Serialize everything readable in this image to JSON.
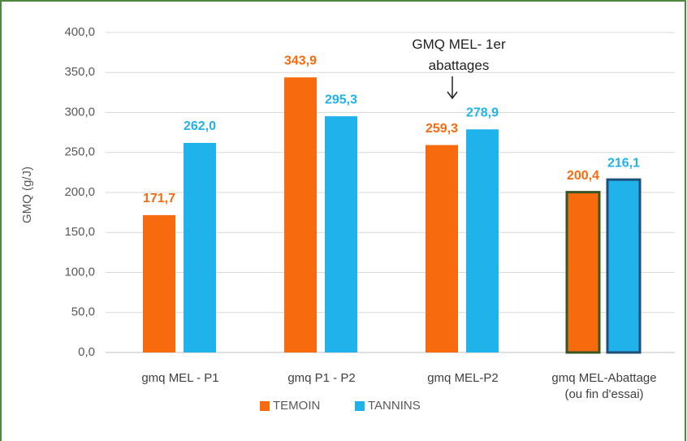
{
  "chart_data": {
    "type": "bar",
    "y_label": "GMQ (g/J)",
    "categories": [
      "gmq MEL - P1",
      "gmq P1 - P2",
      "gmq MEL-P2",
      "gmq MEL-Abattage (ou fin d'essai)"
    ],
    "series": [
      {
        "name": "TEMOIN",
        "color": "#f86a0e",
        "values": [
          171.7,
          343.9,
          259.3,
          200.4
        ],
        "value_labels": [
          "171,7",
          "343,9",
          "259,3",
          "200,4"
        ]
      },
      {
        "name": "TANNINS",
        "color": "#20b2ea",
        "values": [
          262.0,
          295.3,
          278.9,
          216.1
        ],
        "value_labels": [
          "262,0",
          "295,3",
          "278,9",
          "216,1"
        ]
      }
    ],
    "ylim": [
      0,
      400
    ],
    "yticks": [
      {
        "value": 0,
        "label": "0,0"
      },
      {
        "value": 50,
        "label": "50,0"
      },
      {
        "value": 100,
        "label": "100,0"
      },
      {
        "value": 150,
        "label": "150,0"
      },
      {
        "value": 200,
        "label": "200,0"
      },
      {
        "value": 250,
        "label": "250,0"
      },
      {
        "value": 300,
        "label": "300,0"
      },
      {
        "value": 350,
        "label": "350,0"
      },
      {
        "value": 400,
        "label": "400,0"
      }
    ],
    "grid": true,
    "legend": "bottom",
    "annotation": "GMQ MEL- 1er abattages"
  }
}
